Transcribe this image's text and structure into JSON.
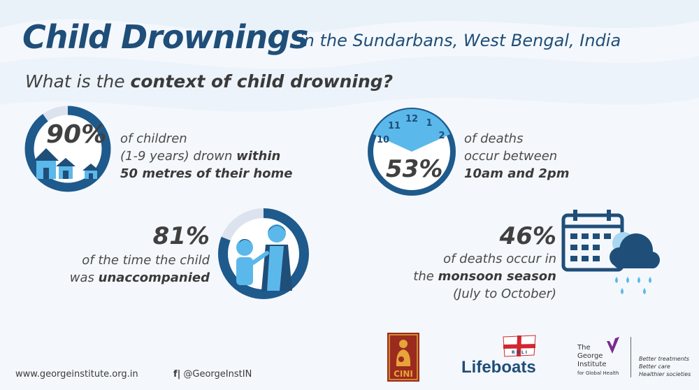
{
  "header": {
    "title": "Child Drownings",
    "subtitle": "in the Sundarbans, West Bengal, India",
    "question_prefix": "What is the ",
    "question_bold": "context of child drowning?"
  },
  "stats": {
    "home": {
      "value": "90%",
      "fraction": 0.9,
      "line1": "of children",
      "line2_a": "(1-9 years) drown ",
      "line2_b": "within",
      "line3": "50 metres of their home"
    },
    "time": {
      "value": "53%",
      "line1": "of deaths",
      "line2": "occur between",
      "line3": "10am and 2pm",
      "clock_numbers": [
        "12",
        "1",
        "2",
        "10",
        "11"
      ]
    },
    "unaccompanied": {
      "value": "81%",
      "fraction": 0.81,
      "line1": "of the time the child",
      "line2_a": "was ",
      "line2_b": "unaccompanied"
    },
    "monsoon": {
      "value": "46%",
      "line1": "of deaths occur in",
      "line2_a": "the ",
      "line2_b": "monsoon season",
      "line3": "(July to October)"
    }
  },
  "footer": {
    "url": "www.georgeinstitute.org.in",
    "social_icons": "f|",
    "handle": "@GeorgeInstIN",
    "logos": {
      "cini": "CINI",
      "rnli": "R N L I",
      "lifeboats": "Lifeboats",
      "george_l1": "The",
      "george_l2": "George",
      "george_l3": "Institute",
      "george_l4": "for Global Health",
      "tag1": "Better treatments",
      "tag2": "Better care",
      "tag3": "Healthier societies"
    }
  },
  "colors": {
    "navy": "#1f4e79",
    "ring": "#1e5a8c",
    "ring_track": "#dde3ee",
    "light_blue": "#5bb8ea",
    "cini_bg": "#9a2b1e",
    "cini_fg": "#e8a33a",
    "rnli_red": "#d22630",
    "george_purple": "#7a2c8c"
  }
}
